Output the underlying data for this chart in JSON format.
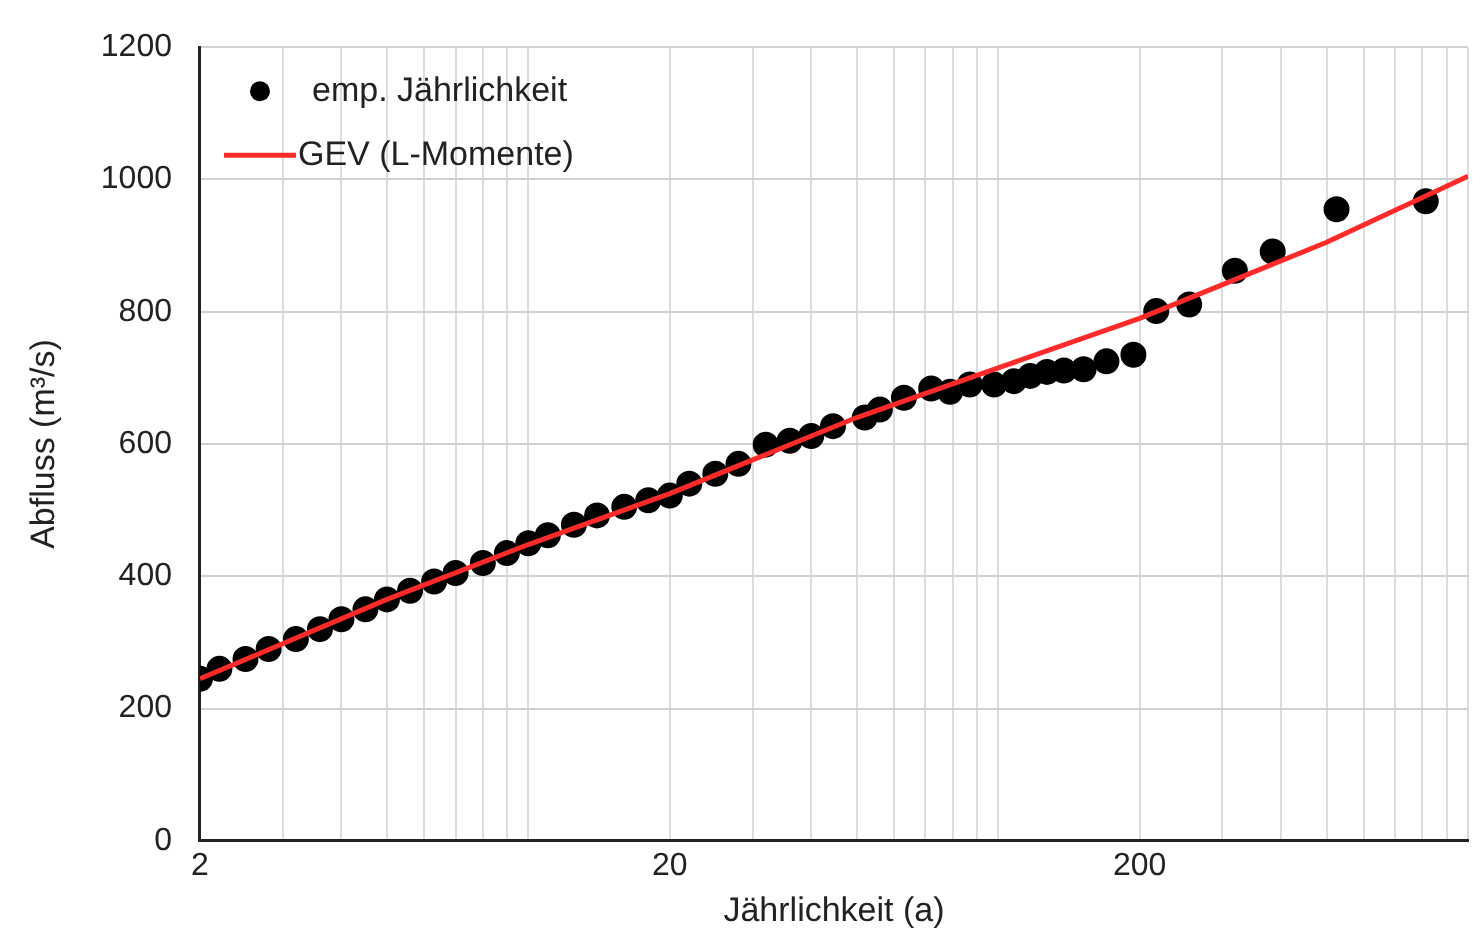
{
  "chart_data": {
    "type": "scatter",
    "xlabel": "Jährlichkeit (a)",
    "ylabel": "Abfluss (m³/s)",
    "log": "x",
    "xlim": [
      2,
      1000
    ],
    "ylim": [
      0,
      1200
    ],
    "xticks": [
      2,
      {
        "value": 3,
        "label": null
      },
      {
        "value": 4,
        "label": null
      },
      {
        "value": 5,
        "label": null
      },
      {
        "value": 6,
        "label": null
      },
      {
        "value": 7,
        "label": null
      },
      {
        "value": 8,
        "label": null
      },
      {
        "value": 9,
        "label": null
      },
      {
        "value": 10,
        "label": null
      },
      20,
      {
        "value": 30,
        "label": null
      },
      {
        "value": 40,
        "label": null
      },
      {
        "value": 50,
        "label": null
      },
      {
        "value": 60,
        "label": null
      },
      {
        "value": 70,
        "label": null
      },
      {
        "value": 80,
        "label": null
      },
      {
        "value": 90,
        "label": null
      },
      {
        "value": 100,
        "label": null
      },
      200,
      {
        "value": 300,
        "label": null
      },
      {
        "value": 400,
        "label": null
      },
      {
        "value": 500,
        "label": null
      },
      {
        "value": 600,
        "label": null
      },
      {
        "value": 700,
        "label": null
      },
      {
        "value": 800,
        "label": null
      },
      {
        "value": 900,
        "label": null
      },
      {
        "value": 1000,
        "label": null
      }
    ],
    "yticks": [
      0,
      200,
      400,
      600,
      800,
      1000,
      1200
    ],
    "grid": true,
    "legend": "top left",
    "series": [
      {
        "name": "emp. Jährlichkeit",
        "marker": "circle",
        "color": "#000000",
        "x": [
          2,
          2.2,
          2.5,
          2.8,
          3.2,
          3.6,
          4,
          4.5,
          5,
          5.6,
          6.3,
          7,
          8,
          9,
          10,
          11,
          12.5,
          14,
          16,
          18,
          20,
          22,
          25,
          28,
          32,
          36,
          40,
          44.5,
          52,
          56,
          63,
          72,
          79,
          87,
          98,
          108,
          117,
          127,
          138,
          152,
          170,
          194,
          217,
          255,
          319,
          384,
          525,
          813
        ],
        "values": [
          245,
          260,
          275,
          290,
          305,
          320,
          335,
          350,
          365,
          378,
          392,
          405,
          420,
          435,
          450,
          462,
          478,
          492,
          505,
          515,
          522,
          540,
          555,
          570,
          599,
          605,
          612,
          627,
          640,
          652,
          670,
          684,
          679,
          690,
          690,
          695,
          703,
          709,
          711,
          713,
          725,
          735,
          801,
          811,
          862,
          891,
          955,
          967
        ]
      },
      {
        "name": "GEV (L-Momente)",
        "type": "line",
        "marker": "none",
        "color": "#ff2a2a",
        "x": [
          2,
          5,
          10,
          20,
          50,
          100,
          200,
          500,
          1000
        ],
        "values": [
          245,
          365,
          448,
          525,
          640,
          715,
          790,
          905,
          1005
        ]
      }
    ]
  }
}
